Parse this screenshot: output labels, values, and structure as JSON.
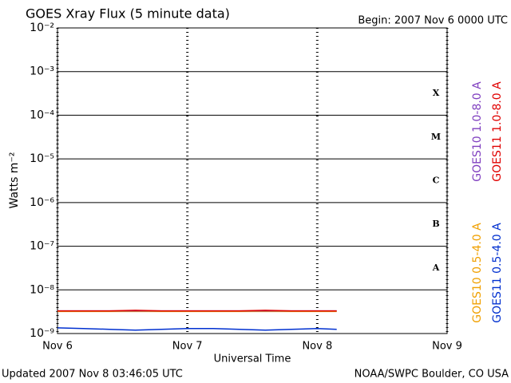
{
  "chart_data": {
    "type": "line",
    "title": "GOES Xray Flux (5 minute data)",
    "subtitle": "Begin:  2007 Nov 6 0000 UTC",
    "xlabel": "Universal Time",
    "ylabel": "Watts m⁻²",
    "footer_left": "Updated 2007 Nov  8 03:46:05 UTC",
    "footer_right": "NOAA/SWPC Boulder, CO USA",
    "log_y": true,
    "grid": true,
    "xlim": [
      0,
      3
    ],
    "xticks": [
      {
        "value": 0,
        "label": "Nov 6"
      },
      {
        "value": 1,
        "label": "Nov 7"
      },
      {
        "value": 2,
        "label": "Nov 8"
      },
      {
        "value": 3,
        "label": "Nov 9"
      }
    ],
    "ylim": [
      1e-09,
      0.01
    ],
    "yticks": [
      {
        "value": 1e-09,
        "label": "10⁻⁹"
      },
      {
        "value": 1e-08,
        "label": "10⁻⁸"
      },
      {
        "value": 1e-07,
        "label": "10⁻⁷"
      },
      {
        "value": 1e-06,
        "label": "10⁻⁶"
      },
      {
        "value": 1e-05,
        "label": "10⁻⁵"
      },
      {
        "value": 0.0001,
        "label": "10⁻⁴"
      },
      {
        "value": 0.001,
        "label": "10⁻³"
      },
      {
        "value": 0.01,
        "label": "10⁻²"
      }
    ],
    "flare_classes": [
      "A",
      "B",
      "C",
      "M",
      "X"
    ],
    "x": [
      0,
      0.2,
      0.4,
      0.6,
      0.8,
      1.0,
      1.2,
      1.4,
      1.6,
      1.8,
      2.0,
      2.15
    ],
    "series": [
      {
        "name": "GOES11 0.5-4.0 A",
        "color": "#0030d0",
        "values": [
          1.35e-09,
          1.3e-09,
          1.25e-09,
          1.2e-09,
          1.25e-09,
          1.3e-09,
          1.3e-09,
          1.25e-09,
          1.2e-09,
          1.25e-09,
          1.3e-09,
          1.25e-09
        ]
      },
      {
        "name": "GOES10 0.5-4.0 A",
        "color": "#f0a000",
        "values": [
          3.2e-09,
          3.2e-09,
          3.2e-09,
          3.2e-09,
          3.2e-09,
          3.2e-09,
          3.2e-09,
          3.2e-09,
          3.2e-09,
          3.2e-09,
          3.2e-09,
          3.2e-09
        ]
      },
      {
        "name": "GOES10 1.0-8.0 A",
        "color": "#8040c0",
        "values": [
          3.3e-09,
          3.3e-09,
          3.3e-09,
          3.3e-09,
          3.3e-09,
          3.3e-09,
          3.3e-09,
          3.3e-09,
          3.3e-09,
          3.3e-09,
          3.3e-09,
          3.3e-09
        ]
      },
      {
        "name": "GOES11 1.0-8.0 A",
        "color": "#e00000",
        "values": [
          3.3e-09,
          3.3e-09,
          3.3e-09,
          3.4e-09,
          3.3e-09,
          3.3e-09,
          3.3e-09,
          3.3e-09,
          3.4e-09,
          3.3e-09,
          3.3e-09,
          3.3e-09
        ]
      }
    ]
  }
}
